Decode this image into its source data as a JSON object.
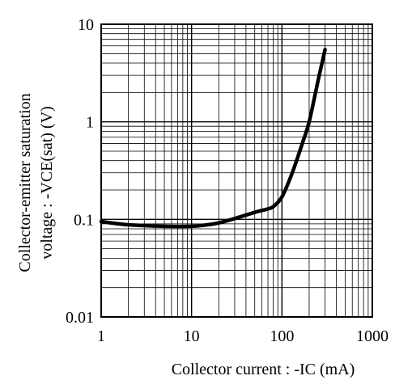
{
  "chart_data": {
    "type": "line",
    "title": "",
    "xlabel": "Collector current : -IC (mA)",
    "ylabel_line1": "Collector-emitter saturation",
    "ylabel_line2": "voltage : -VCE(sat) (V)",
    "xscale": "log",
    "yscale": "log",
    "xlim": [
      1,
      1000
    ],
    "ylim": [
      0.01,
      10
    ],
    "x_tick_labels": [
      "1",
      "10",
      "100",
      "1000"
    ],
    "y_tick_labels": [
      "10",
      "1",
      "0.1",
      "0.01"
    ],
    "grid": true,
    "series": [
      {
        "x": [
          1,
          2,
          5,
          10,
          15,
          20,
          30,
          50,
          70,
          80,
          100,
          130,
          170,
          200,
          250,
          300
        ],
        "y": [
          0.095,
          0.088,
          0.085,
          0.085,
          0.088,
          0.092,
          0.102,
          0.118,
          0.128,
          0.135,
          0.17,
          0.3,
          0.62,
          1.0,
          2.6,
          5.5
        ]
      }
    ],
    "line_color": "#000000"
  }
}
